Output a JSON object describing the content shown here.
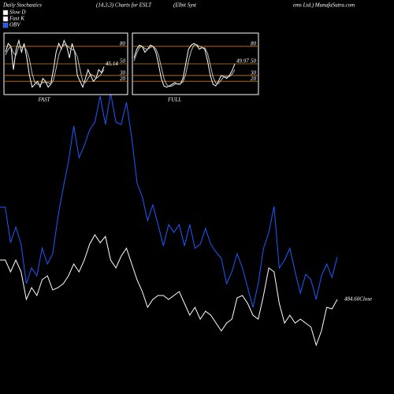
{
  "header": [
    "Daily Stochastics",
    "(14,3,3) Charts for ESLT",
    "(Elbit Syst",
    "ems Ltd.) MunafaSutra.com"
  ],
  "legend": [
    {
      "name": "Slow D",
      "color": "#ffffff"
    },
    {
      "name": "Fast K",
      "color": "#ffffff"
    },
    {
      "name": "OBV",
      "color": "#1a5cff"
    }
  ],
  "chart_data": [
    {
      "type": "line",
      "annotation": "484.60Close",
      "ylim": [
        0,
        500
      ],
      "series": [
        {
          "color": "#1a5cff",
          "values": [
            237,
            237,
            192,
            212,
            190,
            140,
            160,
            150,
            185,
            165,
            178,
            225,
            262,
            295,
            340,
            300,
            315,
            335,
            345,
            378,
            342,
            382,
            345,
            342,
            370,
            325,
            268,
            250,
            220,
            240,
            215,
            188,
            215,
            205,
            215,
            188,
            215,
            185,
            190,
            210,
            190,
            180,
            172,
            140,
            155,
            178,
            160,
            135,
            110,
            140,
            185,
            205,
            238,
            160,
            170,
            185,
            155,
            128,
            152,
            145,
            120,
            150,
            165,
            148,
            174
          ]
        },
        {
          "color": "#ffffff",
          "values": [
            170,
            170,
            155,
            170,
            155,
            120,
            135,
            125,
            145,
            150,
            132,
            135,
            140,
            150,
            165,
            155,
            170,
            190,
            202,
            192,
            200,
            170,
            160,
            175,
            185,
            165,
            145,
            130,
            110,
            120,
            125,
            125,
            120,
            125,
            130,
            115,
            100,
            110,
            95,
            105,
            100,
            90,
            80,
            90,
            95,
            122,
            125,
            115,
            100,
            95,
            125,
            160,
            155,
            115,
            90,
            100,
            90,
            95,
            90,
            85,
            62,
            80,
            110,
            108,
            120
          ]
        }
      ]
    },
    {
      "type": "line",
      "xlabel": "FAST",
      "ylim": [
        0,
        100
      ],
      "yticks": [
        80,
        50,
        30,
        20
      ],
      "grid_color": "#c87a1a",
      "series": [
        {
          "color": "#ffffff",
          "values": [
            70,
            85,
            80,
            40,
            75,
            90,
            70,
            85,
            60,
            30,
            10,
            15,
            20,
            10,
            25,
            20,
            10,
            15,
            40,
            70,
            85,
            75,
            90,
            80,
            60,
            85,
            70,
            30,
            20,
            10,
            25,
            40,
            30,
            20,
            25,
            40,
            35,
            45.14
          ]
        },
        {
          "color": "#bbbbbb",
          "values": [
            65,
            75,
            80,
            68,
            65,
            80,
            78,
            80,
            72,
            58,
            33,
            18,
            15,
            15,
            18,
            18,
            18,
            15,
            22,
            42,
            65,
            77,
            83,
            82,
            77,
            75,
            72,
            62,
            40,
            20,
            18,
            25,
            32,
            30,
            25,
            28,
            33,
            40
          ]
        }
      ]
    },
    {
      "type": "line",
      "xlabel": "FULL",
      "ylim": [
        0,
        100
      ],
      "yticks": [
        80,
        50,
        30,
        20
      ],
      "grid_color": "#c87a1a",
      "series": [
        {
          "color": "#ffffff",
          "values": [
            60,
            75,
            82,
            80,
            70,
            75,
            82,
            80,
            70,
            50,
            25,
            12,
            10,
            12,
            15,
            18,
            15,
            15,
            25,
            50,
            75,
            82,
            85,
            82,
            75,
            78,
            75,
            55,
            30,
            15,
            12,
            20,
            30,
            28,
            25,
            30,
            38,
            49.97
          ]
        },
        {
          "color": "#bbbbbb",
          "values": [
            55,
            68,
            78,
            80,
            76,
            75,
            78,
            80,
            76,
            65,
            45,
            25,
            14,
            11,
            12,
            15,
            16,
            16,
            19,
            32,
            55,
            72,
            82,
            83,
            80,
            78,
            77,
            68,
            48,
            28,
            17,
            16,
            22,
            28,
            28,
            28,
            32,
            40
          ]
        }
      ]
    }
  ]
}
